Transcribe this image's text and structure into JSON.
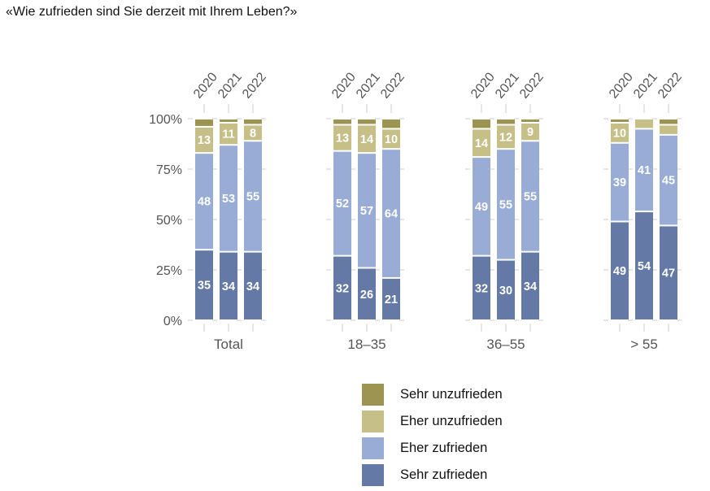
{
  "title": "«Wie zufrieden sind Sie derzeit mit Ihrem Leben?»",
  "chart_data": {
    "type": "bar",
    "stacked": true,
    "title": "«Wie zufrieden sind Sie derzeit mit Ihrem Leben?»",
    "xlabel": "",
    "ylabel": "",
    "ylim": [
      0,
      100
    ],
    "yticks": [
      "0%",
      "25%",
      "50%",
      "75%",
      "100%"
    ],
    "ytick_values": [
      0,
      25,
      50,
      75,
      100
    ],
    "grid": false,
    "legend_position": "bottom",
    "groups": [
      "Total",
      "18–35",
      "36–55",
      "> 55"
    ],
    "years": [
      "2020",
      "2021",
      "2022"
    ],
    "series": [
      {
        "name": "Sehr zufrieden",
        "color": "#6479a6",
        "values": [
          [
            35,
            34,
            34
          ],
          [
            32,
            26,
            21
          ],
          [
            32,
            30,
            34
          ],
          [
            49,
            54,
            47
          ]
        ],
        "labels": [
          [
            "35",
            "34",
            "34"
          ],
          [
            "32",
            "26",
            "21"
          ],
          [
            "32",
            "30",
            "34"
          ],
          [
            "49",
            "54",
            "47"
          ]
        ]
      },
      {
        "name": "Eher zufrieden",
        "color": "#98acd6",
        "values": [
          [
            48,
            53,
            55
          ],
          [
            52,
            57,
            64
          ],
          [
            49,
            55,
            55
          ],
          [
            39,
            41,
            45
          ]
        ],
        "labels": [
          [
            "48",
            "53",
            "55"
          ],
          [
            "52",
            "57",
            "64"
          ],
          [
            "49",
            "55",
            "55"
          ],
          [
            "39",
            "41",
            "45"
          ]
        ]
      },
      {
        "name": "Eher unzufrieden",
        "color": "#c6bf88",
        "values": [
          [
            13,
            11,
            8
          ],
          [
            13,
            14,
            10
          ],
          [
            14,
            12,
            9
          ],
          [
            10,
            5,
            5
          ]
        ],
        "labels": [
          [
            "13",
            "11",
            "8"
          ],
          [
            "13",
            "14",
            "10"
          ],
          [
            "14",
            "12",
            "9"
          ],
          [
            "10",
            "",
            ""
          ]
        ]
      },
      {
        "name": "Sehr unzufrieden",
        "color": "#9c9450",
        "values": [
          [
            4,
            2,
            3
          ],
          [
            3,
            3,
            5
          ],
          [
            5,
            3,
            2
          ],
          [
            2,
            0,
            3
          ]
        ],
        "labels": [
          [
            "",
            "",
            ""
          ],
          [
            "",
            "",
            ""
          ],
          [
            "",
            "",
            ""
          ],
          [
            "",
            "",
            ""
          ]
        ]
      }
    ]
  },
  "legend": [
    {
      "label": "Sehr unzufrieden",
      "color": "#9c9450"
    },
    {
      "label": "Eher unzufrieden",
      "color": "#c6bf88"
    },
    {
      "label": "Eher zufrieden",
      "color": "#98acd6"
    },
    {
      "label": "Sehr zufrieden",
      "color": "#6479a6"
    }
  ]
}
